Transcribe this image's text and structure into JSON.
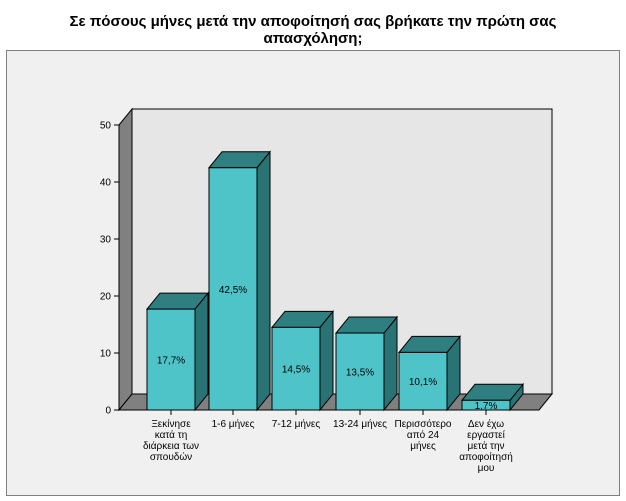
{
  "chart_data": {
    "type": "bar",
    "title_lines": [
      "Σε πόσους μήνες μετά την αποφοίτησή σας βρήκατε την πρώτη σας",
      "απασχόληση;"
    ],
    "categories": [
      [
        "Ξεκίνησε",
        "κατά τη",
        "διάρκεια των",
        "σπουδών"
      ],
      [
        "1-6 μήνες"
      ],
      [
        "7-12 μήνες"
      ],
      [
        "13-24 μήνες"
      ],
      [
        "Περισσότερο",
        "από 24",
        "μήνες"
      ],
      [
        "Δεν έχω",
        "εργαστεί",
        "μετά την",
        "αποφοίτησή",
        "μου"
      ]
    ],
    "values": [
      17.7,
      42.5,
      14.5,
      13.5,
      10.1,
      1.7
    ],
    "value_labels": [
      "17,7%",
      "42,5%",
      "14,5%",
      "13,5%",
      "10,1%",
      "1,7%"
    ],
    "ylim": [
      0,
      50
    ],
    "yticks": [
      0,
      10,
      20,
      30,
      40,
      50
    ],
    "grid": false,
    "colors": {
      "bar_front": "#4fc4c8",
      "bar_top": "#2f7f80",
      "bar_side": "#2a7374",
      "wall": "#e6e6e6",
      "floor": "#808080",
      "frame_bg": "#f0f0f0"
    }
  }
}
